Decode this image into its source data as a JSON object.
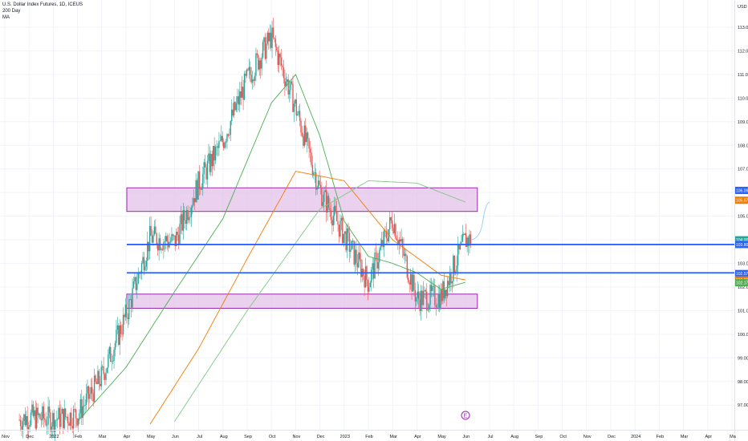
{
  "legend": {
    "symbol_line": "U.S. Dollar Index Futures, 1D, ICEUS",
    "line2": "200 Day",
    "line3": "MA"
  },
  "axis": {
    "currency": "USD",
    "price_ticks": [
      "113.000",
      "112.000",
      "111.000",
      "110.000",
      "109.000",
      "108.000",
      "107.000",
      "106.000",
      "105.000",
      "104.000",
      "103.000",
      "102.000",
      "101.000",
      "100.000",
      "99.000",
      "98.000",
      "97.000"
    ],
    "time_ticks": [
      "Nov",
      "Dec",
      "2022",
      "Feb",
      "Mar",
      "Apr",
      "May",
      "Jun",
      "Jul",
      "Aug",
      "Sep",
      "Oct",
      "Nov",
      "Dec",
      "2023",
      "Feb",
      "Mar",
      "Apr",
      "May",
      "Jun",
      "Jul",
      "Aug",
      "Sep",
      "Oct",
      "Nov",
      "Dec",
      "2024",
      "Feb",
      "Mar",
      "Apr",
      "Ma"
    ]
  },
  "price_labels": [
    {
      "text": "106.092",
      "color": "#2962ff"
    },
    {
      "text": "105.675",
      "color": "#f57c00"
    },
    {
      "text": "104.000",
      "color": "#26a69a"
    },
    {
      "text": "103.801",
      "color": "#2962ff"
    },
    {
      "text": "102.570",
      "color": "#2962ff"
    },
    {
      "text": "102.297",
      "color": "#f57c00"
    },
    {
      "text": "102.179",
      "color": "#4caf50"
    }
  ],
  "colors": {
    "up": "#26a69a",
    "down": "#ef5350",
    "ma_fast": "#4caf50",
    "ma_mid": "#f57c00",
    "ma_slow": "#81c784",
    "zone_fill": "#e1bee7",
    "zone_border": "#9c27b0",
    "hline": "#2962ff",
    "projection": "#90caf9"
  },
  "chart_data": {
    "type": "candlestick",
    "symbol": "U.S. Dollar Index Futures",
    "timeframe": "1D",
    "exchange": "ICEUS",
    "ylim": [
      96.3,
      114.1
    ],
    "x_range": [
      "2021-11",
      "2024-05"
    ],
    "series": [
      {
        "name": "price",
        "x": [
          "2021-11",
          "2021-12",
          "2022-01",
          "2022-02",
          "2022-03",
          "2022-04",
          "2022-05",
          "2022-06",
          "2022-07",
          "2022-08",
          "2022-09",
          "2022-10",
          "2022-11",
          "2022-12",
          "2023-01",
          "2023-02",
          "2023-03",
          "2023-04",
          "2023-05",
          "2023-06"
        ],
        "values": [
          96.2,
          96.5,
          96.4,
          96.6,
          98.2,
          100.8,
          104.1,
          103.9,
          106.4,
          108.2,
          110.8,
          112.6,
          109.6,
          106.1,
          104.2,
          102.2,
          104.9,
          101.5,
          101.6,
          104.0
        ]
      },
      {
        "name": "MA",
        "x": [
          "2022-02",
          "2022-04",
          "2022-06",
          "2022-08",
          "2022-10",
          "2022-11",
          "2022-12",
          "2023-01",
          "2023-02",
          "2023-03",
          "2023-04",
          "2023-05",
          "2023-06"
        ],
        "values": [
          96.3,
          98.6,
          101.8,
          104.9,
          109.8,
          111.0,
          108.4,
          104.8,
          103.3,
          103.0,
          102.6,
          101.9,
          102.2
        ]
      },
      {
        "name": "200 Day",
        "x": [
          "2022-05",
          "2022-07",
          "2022-09",
          "2022-11",
          "2023-01",
          "2023-03",
          "2023-05",
          "2023-06"
        ],
        "values": [
          96.2,
          99.4,
          103.2,
          106.9,
          106.5,
          104.0,
          102.5,
          102.3
        ]
      },
      {
        "name": "slow",
        "x": [
          "2022-06",
          "2022-09",
          "2022-12",
          "2023-02",
          "2023-04",
          "2023-06"
        ],
        "values": [
          96.3,
          101.0,
          105.3,
          106.5,
          106.4,
          105.6
        ]
      }
    ],
    "zones": [
      {
        "from": 105.2,
        "to": 106.2
      },
      {
        "from": 101.1,
        "to": 101.7
      }
    ],
    "levels": [
      103.8,
      102.6
    ],
    "projection": {
      "x": [
        "2023-06",
        "2023-07"
      ],
      "values": [
        104.0,
        105.6
      ]
    }
  }
}
